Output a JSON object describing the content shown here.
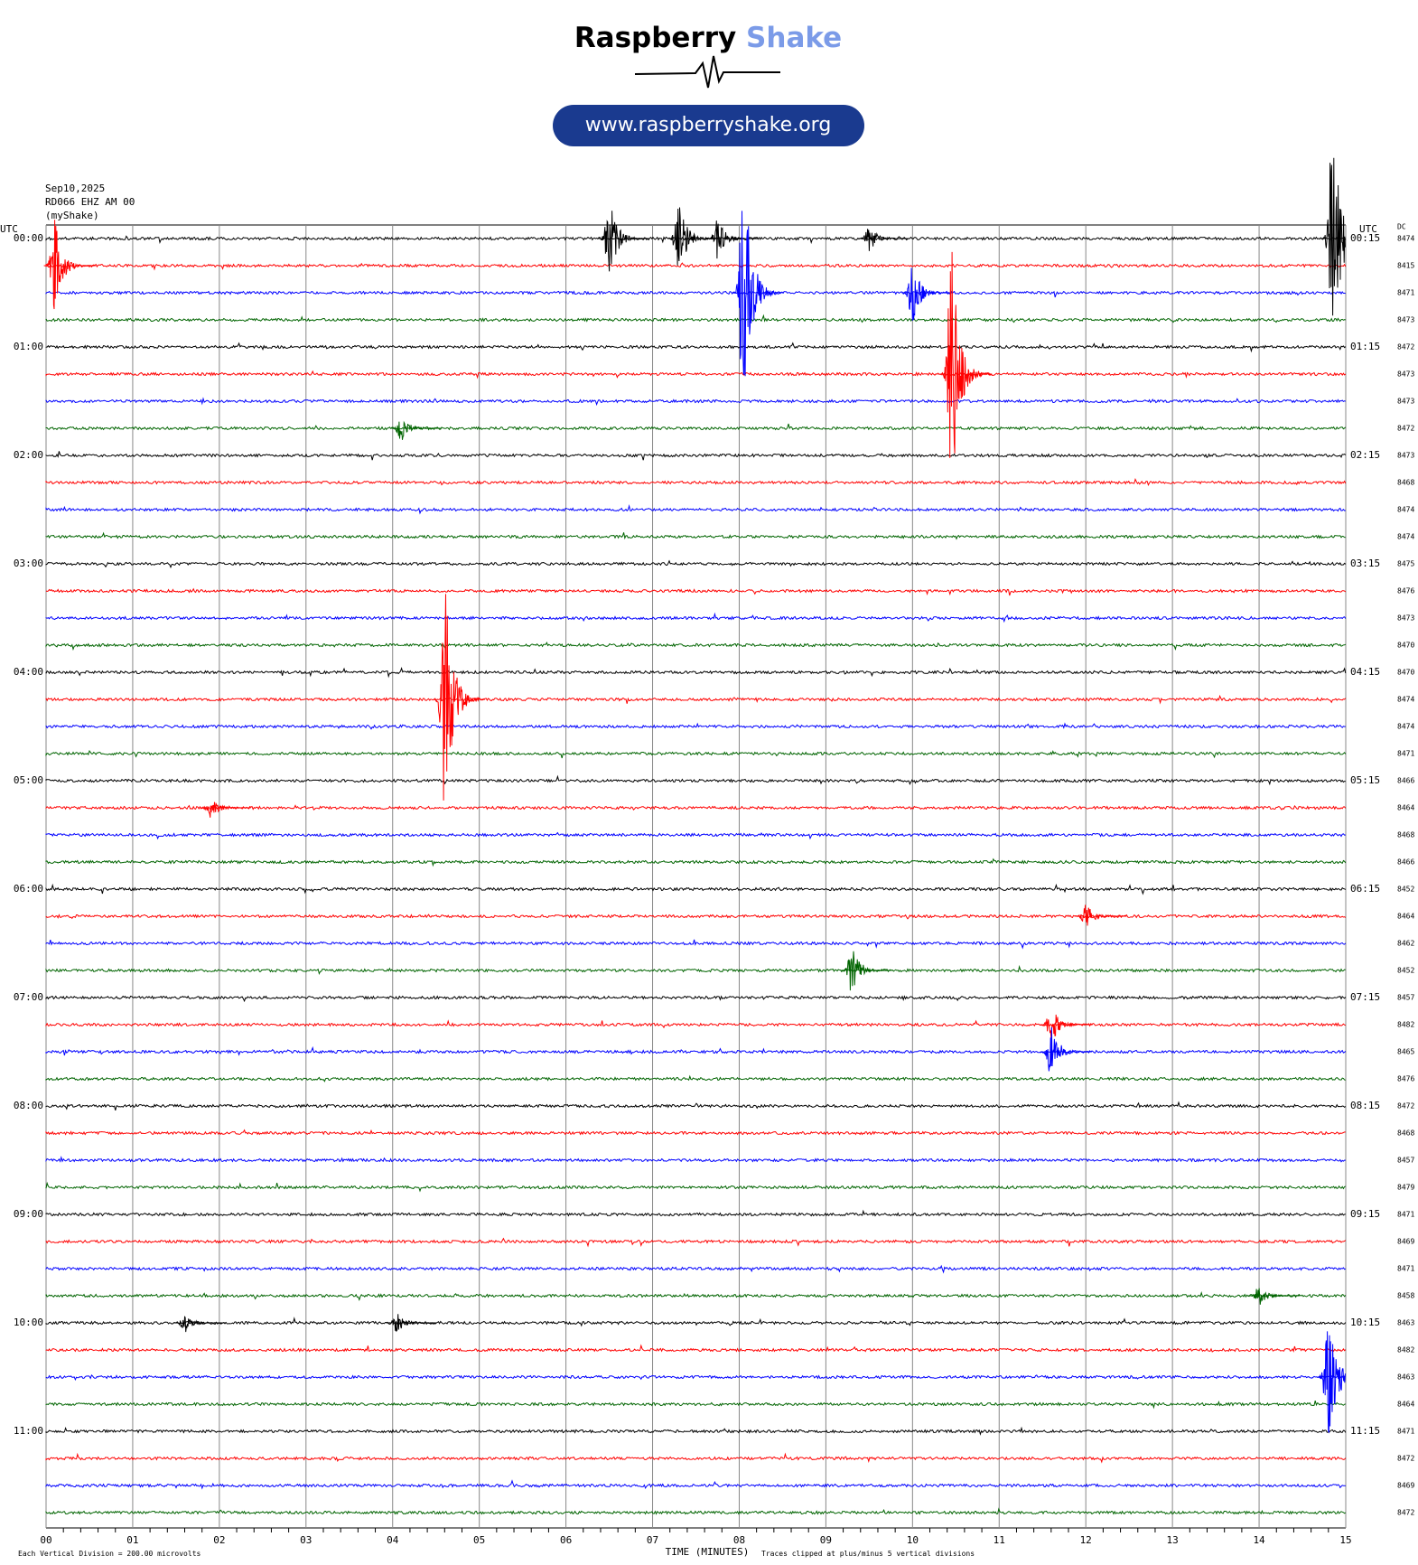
{
  "header": {
    "brand": "Raspberry",
    "brand_accent": "Shake",
    "url": "www.raspberryshake.org"
  },
  "chart_data": {
    "type": "helicorder",
    "date": "Sep10,2025",
    "station": "RD066 EHZ AM 00",
    "source": "(myShake)",
    "left_axis_label": "UTC",
    "right_axis_label": "UTC",
    "dc_label": "DC",
    "row_colors": [
      "#000000",
      "#ff0000",
      "#0000ff",
      "#006400"
    ],
    "hour_labels": [
      "00:00",
      "01:00",
      "02:00",
      "03:00",
      "04:00",
      "05:00",
      "06:00",
      "07:00",
      "08:00",
      "09:00",
      "10:00",
      "11:00"
    ],
    "end_labels": [
      "00:15",
      "01:15",
      "02:15",
      "03:15",
      "04:15",
      "05:15",
      "06:15",
      "07:15",
      "08:15",
      "09:15",
      "10:15",
      "11:15"
    ],
    "dc": [
      8474,
      8415,
      8471,
      8473,
      8472,
      8473,
      8473,
      8472,
      8473,
      8468,
      8474,
      8474,
      8475,
      8476,
      8473,
      8470,
      8470,
      8474,
      8474,
      8471,
      8466,
      8464,
      8468,
      8466,
      8452,
      8464,
      8462,
      8452,
      8457,
      8482,
      8465,
      8476,
      8472,
      8468,
      8457,
      8479,
      8471,
      8469,
      8471,
      8458,
      8463,
      8482,
      8463,
      8464,
      8471,
      8472,
      8469,
      8472
    ],
    "xlim": [
      0,
      15
    ],
    "xticks": [
      {
        "value": 0,
        "label": "00"
      },
      {
        "value": 1,
        "label": "01"
      },
      {
        "value": 2,
        "label": "02"
      },
      {
        "value": 3,
        "label": "03"
      },
      {
        "value": 4,
        "label": "04"
      },
      {
        "value": 5,
        "label": "05"
      },
      {
        "value": 6,
        "label": "06"
      },
      {
        "value": 7,
        "label": "07"
      },
      {
        "value": 8,
        "label": "08"
      },
      {
        "value": 9,
        "label": "09"
      },
      {
        "value": 10,
        "label": "10"
      },
      {
        "value": 11,
        "label": "11"
      },
      {
        "value": 12,
        "label": "12"
      },
      {
        "value": 13,
        "label": "13"
      },
      {
        "value": 14,
        "label": "14"
      },
      {
        "value": 15,
        "label": "15"
      }
    ],
    "x_label": "TIME (MINUTES)",
    "division_text": "Each Vertical Division =",
    "division_uv": {
      "value": 200,
      "label": "200.00"
    },
    "division_unit": "microvolts",
    "clip_text": "Traces clipped at plus/minus",
    "clip_divisions": 5,
    "clip_unit": "vertical divisions",
    "events": [
      {
        "row": 1,
        "minute": 0.1,
        "amplitude": 350
      },
      {
        "row": 0,
        "minute": 6.5,
        "amplitude": 300
      },
      {
        "row": 0,
        "minute": 7.3,
        "amplitude": 300
      },
      {
        "row": 0,
        "minute": 7.75,
        "amplitude": 150
      },
      {
        "row": 0,
        "minute": 9.5,
        "amplitude": 100
      },
      {
        "row": 2,
        "minute": 8.05,
        "amplitude": 1000
      },
      {
        "row": 2,
        "minute": 10.0,
        "amplitude": 250
      },
      {
        "row": 5,
        "minute": 10.45,
        "amplitude": 1000
      },
      {
        "row": 0,
        "minute": 14.85,
        "amplitude": 1000
      },
      {
        "row": 7,
        "minute": 4.1,
        "amplitude": 100
      },
      {
        "row": 17,
        "minute": 4.6,
        "amplitude": 1000
      },
      {
        "row": 21,
        "minute": 1.9,
        "amplitude": 80
      },
      {
        "row": 25,
        "minute": 12.0,
        "amplitude": 100
      },
      {
        "row": 27,
        "minute": 9.3,
        "amplitude": 200
      },
      {
        "row": 29,
        "minute": 11.6,
        "amplitude": 150
      },
      {
        "row": 30,
        "minute": 11.6,
        "amplitude": 200
      },
      {
        "row": 39,
        "minute": 14.0,
        "amplitude": 80
      },
      {
        "row": 40,
        "minute": 1.6,
        "amplitude": 80
      },
      {
        "row": 40,
        "minute": 4.05,
        "amplitude": 80
      },
      {
        "row": 42,
        "minute": 14.8,
        "amplitude": 600
      }
    ]
  }
}
